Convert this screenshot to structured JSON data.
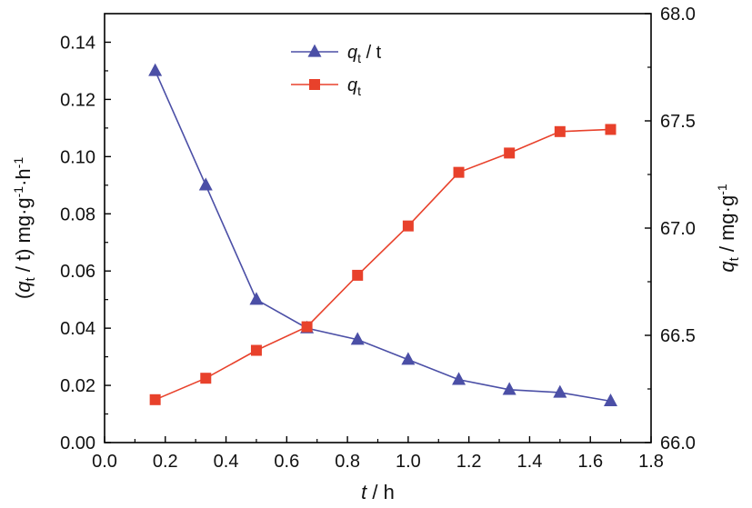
{
  "chart_data": {
    "type": "line",
    "x": [
      0.1667,
      0.3333,
      0.5,
      0.6667,
      0.8333,
      1.0,
      1.1667,
      1.3333,
      1.5,
      1.6667
    ],
    "xlim": [
      0.0,
      1.8
    ],
    "xticks": [
      "0.0",
      "0.2",
      "0.4",
      "0.6",
      "0.8",
      "1.0",
      "1.2",
      "1.4",
      "1.6",
      "1.8"
    ],
    "xlabel": {
      "var": "t",
      "rest": " / h"
    },
    "ylim_left": [
      0.0,
      0.15
    ],
    "yticks_left": [
      "0.00",
      "0.02",
      "0.04",
      "0.06",
      "0.08",
      "0.10",
      "0.12",
      "0.14"
    ],
    "ylabel_left": {
      "open": "(",
      "var": "q",
      "sub": "t",
      "mid": " / t) mg·g",
      "sup1": "-1",
      "dot": "·h",
      "sup2": "-1"
    },
    "ylim_right": [
      66.0,
      68.0
    ],
    "yticks_right": [
      "66.0",
      "66.5",
      "67.0",
      "67.5",
      "68.0"
    ],
    "ylabel_right": {
      "var": "q",
      "sub": "t",
      "rest": " / mg·g",
      "sup": "-1"
    },
    "legend_position": "top-center",
    "series": [
      {
        "name": "q_t / t",
        "legend": {
          "var": "q",
          "sub": "t",
          "rest": " / t"
        },
        "axis": "left",
        "marker": "triangle",
        "color": "#4b4fa6",
        "values": [
          0.13,
          0.09,
          0.05,
          0.04,
          0.036,
          0.029,
          0.022,
          0.0185,
          0.0175,
          0.0145
        ]
      },
      {
        "name": "q_t",
        "legend": {
          "var": "q",
          "sub": "t",
          "rest": ""
        },
        "axis": "right",
        "marker": "square",
        "color": "#e8412b",
        "values": [
          66.2,
          66.3,
          66.43,
          66.54,
          66.78,
          67.01,
          67.26,
          67.35,
          67.45,
          67.46
        ]
      }
    ]
  }
}
